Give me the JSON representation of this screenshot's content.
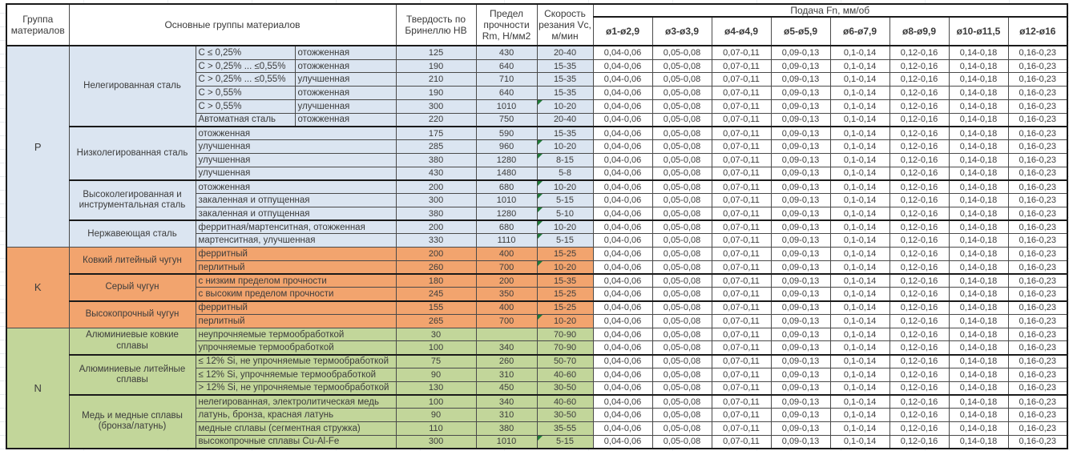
{
  "header": {
    "group_col": "Группа материалов",
    "main_col": "Основные группы материалов",
    "hb_col": "Твердость по Бринеллю НВ",
    "rm_col": "Предел прочности Rm, Н/мм2",
    "vc_col": "Скорость резания Vc, м/мин",
    "feed_col": "Подача Fn, мм/об",
    "diameters": [
      "ø1-ø2,9",
      "ø3-ø3,9",
      "ø4-ø4,9",
      "ø5-ø5,9",
      "ø6-ø7,9",
      "ø8-ø9,9",
      "ø10-ø11,5",
      "ø12-ø16"
    ]
  },
  "feed_values": [
    "0,04-0,06",
    "0,05-0,08",
    "0,07-0,11",
    "0,09-0,13",
    "0,1-0,14",
    "0,12-0,16",
    "0,14-0,18",
    "0,16-0,23"
  ],
  "colors": {
    "group_p": "#dbe5f1",
    "group_k": "#f2a46e",
    "group_n": "#c2d69a",
    "flag_marker": "#1f7a38"
  },
  "groups": [
    {
      "code": "P",
      "color_key": "group_p",
      "subgroups": [
        {
          "name": "Нелегированная сталь",
          "rows": [
            {
              "detail": "C ≤ 0,25%",
              "state": "отожженная",
              "hb": "125",
              "rm": "430",
              "vc": "20-40",
              "flag": false
            },
            {
              "detail": "C > 0,25% ... ≤0,55%",
              "state": "отожженная",
              "hb": "190",
              "rm": "640",
              "vc": "15-35",
              "flag": false
            },
            {
              "detail": "C > 0,25% ... ≤0,55%",
              "state": "улучшенная",
              "hb": "210",
              "rm": "710",
              "vc": "15-35",
              "flag": false
            },
            {
              "detail": "C > 0,55%",
              "state": "отожженная",
              "hb": "190",
              "rm": "640",
              "vc": "15-35",
              "flag": false
            },
            {
              "detail": "C > 0,55%",
              "state": "улучшенная",
              "hb": "300",
              "rm": "1010",
              "vc": "10-20",
              "flag": true
            },
            {
              "detail": "Автоматная сталь",
              "state": "отожженная",
              "hb": "220",
              "rm": "750",
              "vc": "20-40",
              "flag": false
            }
          ]
        },
        {
          "name": "Низколегированная сталь",
          "rows": [
            {
              "detail": "отожженная",
              "hb": "175",
              "rm": "590",
              "vc": "15-35",
              "flag": false
            },
            {
              "detail": "улучшенная",
              "hb": "285",
              "rm": "960",
              "vc": "10-20",
              "flag": true
            },
            {
              "detail": "улучшенная",
              "hb": "380",
              "rm": "1280",
              "vc": "8-15",
              "flag": true
            },
            {
              "detail": "улучшенная",
              "hb": "430",
              "rm": "1480",
              "vc": "5-8",
              "flag": false
            }
          ]
        },
        {
          "name": "Высоколегированная и инструментальная сталь",
          "rows": [
            {
              "detail": "отожженная",
              "hb": "200",
              "rm": "680",
              "vc": "10-20",
              "flag": true
            },
            {
              "detail": "закаленная и отпущенная",
              "hb": "300",
              "rm": "1010",
              "vc": "5-15",
              "flag": true
            },
            {
              "detail": "закаленная и отпущенная",
              "hb": "380",
              "rm": "1280",
              "vc": "5-10",
              "flag": true
            }
          ]
        },
        {
          "name": "Нержавеющая сталь",
          "rows": [
            {
              "detail": "ферритная/мартенситная, отожженная",
              "hb": "200",
              "rm": "680",
              "vc": "10-20",
              "flag": true
            },
            {
              "detail": "мартенситная, улучшенная",
              "hb": "330",
              "rm": "1110",
              "vc": "5-15",
              "flag": true
            }
          ]
        }
      ]
    },
    {
      "code": "K",
      "color_key": "group_k",
      "subgroups": [
        {
          "name": "Ковкий литейный чугун",
          "rows": [
            {
              "detail": "ферритный",
              "hb": "200",
              "rm": "400",
              "vc": "15-25",
              "flag": false
            },
            {
              "detail": "перлитный",
              "hb": "260",
              "rm": "700",
              "vc": "10-20",
              "flag": true
            }
          ]
        },
        {
          "name": "Серый чугун",
          "rows": [
            {
              "detail": "с низким пределом прочности",
              "hb": "180",
              "rm": "200",
              "vc": "15-35",
              "flag": false
            },
            {
              "detail": "с высоким пределом прочности",
              "hb": "245",
              "rm": "350",
              "vc": "15-25",
              "flag": false
            }
          ]
        },
        {
          "name": "Высокопрочный чугун",
          "rows": [
            {
              "detail": "ферритный",
              "hb": "155",
              "rm": "400",
              "vc": "15-25",
              "flag": false
            },
            {
              "detail": "перлитный",
              "hb": "265",
              "rm": "700",
              "vc": "10-20",
              "flag": true
            }
          ]
        }
      ]
    },
    {
      "code": "N",
      "color_key": "group_n",
      "subgroups": [
        {
          "name": "Алюминиевые ковкие сплавы",
          "rows": [
            {
              "detail": "неупрочняемые термообработкой",
              "hb": "30",
              "rm": "",
              "vc": "70-90",
              "flag": false
            },
            {
              "detail": "упрочняемые термообработкой",
              "hb": "100",
              "rm": "340",
              "vc": "70-90",
              "flag": false
            }
          ]
        },
        {
          "name": "Алюминиевые литейные сплавы",
          "rows": [
            {
              "detail": "≤ 12% Si, не упрочняемые термообработкой",
              "hb": "75",
              "rm": "260",
              "vc": "50-70",
              "flag": false
            },
            {
              "detail": "≤ 12% Si, упрочняемые термообработкой",
              "hb": "90",
              "rm": "310",
              "vc": "40-60",
              "flag": false
            },
            {
              "detail": "> 12% Si, не упрочняемые термообработкой",
              "hb": "130",
              "rm": "450",
              "vc": "30-50",
              "flag": false
            }
          ]
        },
        {
          "name": "Медь и медные сплавы (бронза/латунь)",
          "rows": [
            {
              "detail": "нелегированная, электролитическая медь",
              "hb": "100",
              "rm": "340",
              "vc": "40-60",
              "flag": false
            },
            {
              "detail": "латунь, бронза, красная латунь",
              "hb": "90",
              "rm": "310",
              "vc": "30-50",
              "flag": false
            },
            {
              "detail": "медные сплавы (сегментная стружка)",
              "hb": "110",
              "rm": "380",
              "vc": "35-55",
              "flag": false
            },
            {
              "detail": "высокопрочные сплавы Cu-Al-Fe",
              "hb": "300",
              "rm": "1010",
              "vc": "5-15",
              "flag": true
            }
          ]
        }
      ]
    }
  ]
}
